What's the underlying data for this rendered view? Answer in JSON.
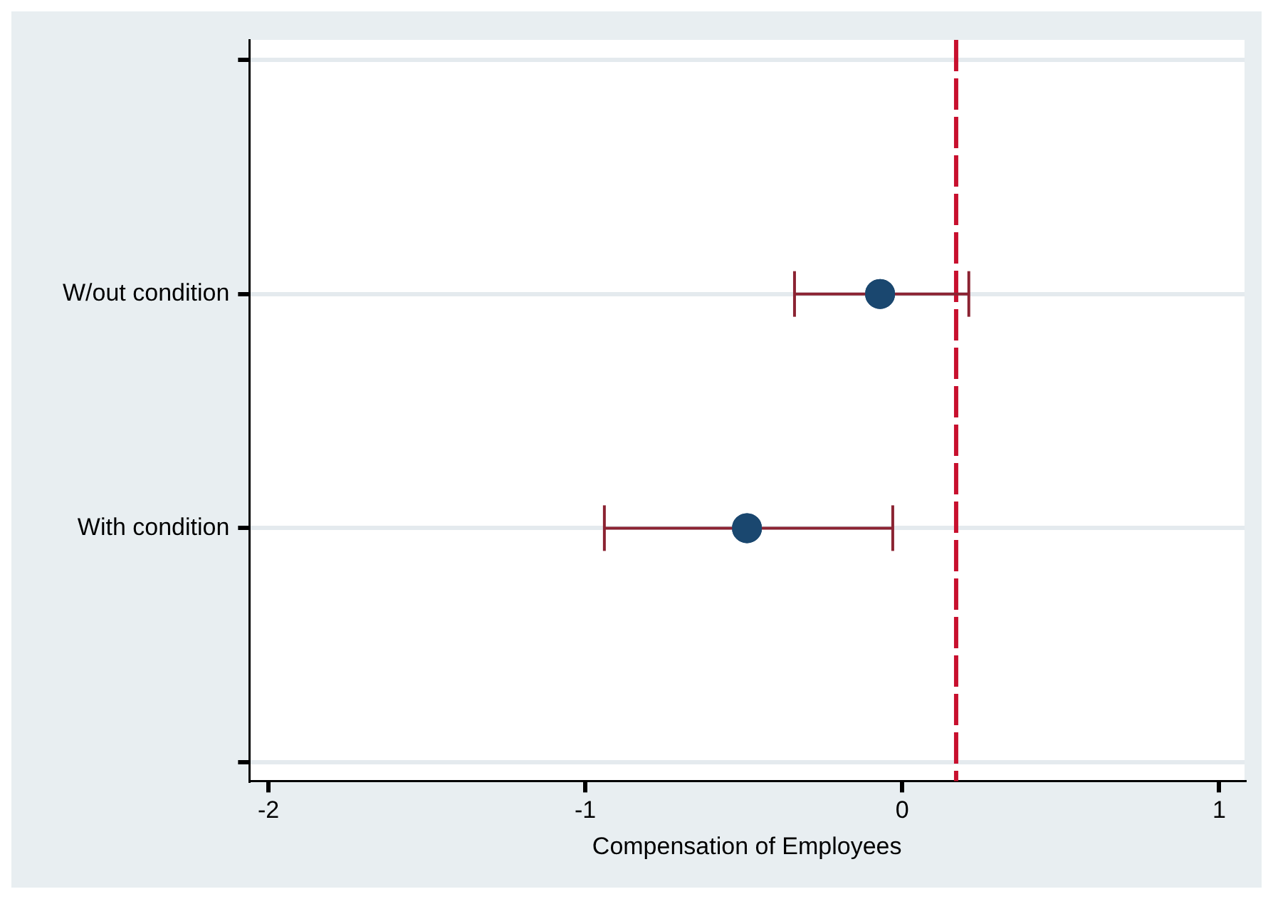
{
  "chart_data": {
    "type": "scatter",
    "orientation": "horizontal",
    "xlabel": "Compensation of Employees",
    "categories": [
      null,
      "W/out condition",
      "With condition",
      null
    ],
    "values": [
      null,
      -0.07,
      -0.49,
      null
    ],
    "errors": [
      null,
      [
        -0.34,
        0.21
      ],
      [
        -0.94,
        -0.03
      ],
      null
    ],
    "color": "#1a476f",
    "xlim": [
      -2.06,
      1.08
    ],
    "xticks": [
      -2,
      -1,
      0,
      1
    ],
    "ref_lines": [
      {
        "axis": "x",
        "value": 0.17,
        "color": "#c8102e",
        "line_style": "dashed"
      }
    ],
    "grid": "y",
    "legend": false,
    "marker": "circle"
  }
}
